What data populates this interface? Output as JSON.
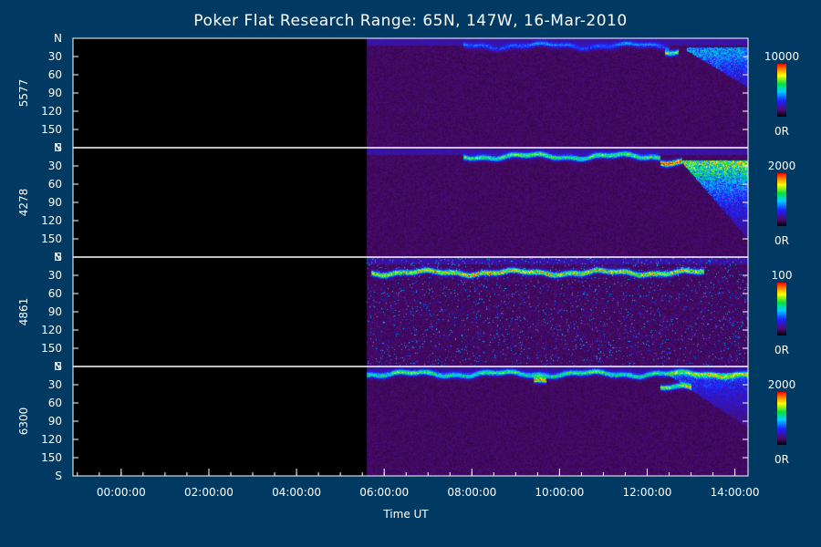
{
  "chart_data": {
    "type": "heatmap",
    "title": "Poker Flat Research Range: 65N, 147W, 16-Mar-2010",
    "xlabel": "Time UT",
    "x_ticks": [
      "00:00:00",
      "02:00:00",
      "04:00:00",
      "06:00:00",
      "08:00:00",
      "10:00:00",
      "12:00:00",
      "14:00:00"
    ],
    "x_range_hours": [
      -1.1,
      14.3
    ],
    "y_ticks": [
      "N",
      "30",
      "60",
      "90",
      "120",
      "150",
      "S"
    ],
    "y_range_deg": [
      0,
      180
    ],
    "panels": [
      {
        "label": "5577",
        "cbar_max": "10000",
        "cbar_min": "0R",
        "data_start_hour": 5.6,
        "features": [
          {
            "kind": "arc",
            "t0": 7.8,
            "t1": 12.5,
            "lat": 12,
            "amp": 0.25
          },
          {
            "kind": "arc",
            "t0": 12.4,
            "t1": 12.7,
            "lat": 20,
            "amp": 0.6
          },
          {
            "kind": "storm",
            "t0": 12.9,
            "t1": 14.3,
            "latStart": 20,
            "latEnd": 80,
            "amp": 0.45
          }
        ]
      },
      {
        "label": "4278",
        "cbar_max": "2000",
        "cbar_min": "0R",
        "data_start_hour": 5.6,
        "features": [
          {
            "kind": "arc",
            "t0": 7.8,
            "t1": 12.3,
            "lat": 14,
            "amp": 0.55
          },
          {
            "kind": "arc",
            "t0": 12.3,
            "t1": 12.8,
            "lat": 22,
            "amp": 0.9
          },
          {
            "kind": "storm",
            "t0": 12.8,
            "t1": 14.3,
            "latStart": 25,
            "latEnd": 150,
            "amp": 0.75
          }
        ]
      },
      {
        "label": "4861",
        "cbar_max": "100",
        "cbar_min": "0R",
        "data_start_hour": 5.6,
        "features": [
          {
            "kind": "arc",
            "t0": 5.7,
            "t1": 13.3,
            "lat": 25,
            "amp": 0.7
          },
          {
            "kind": "noise",
            "t0": 5.6,
            "t1": 14.3,
            "amp": 0.25
          }
        ]
      },
      {
        "label": "6300",
        "cbar_max": "2000",
        "cbar_min": "0R",
        "data_start_hour": 5.6,
        "features": [
          {
            "kind": "arc",
            "t0": 5.6,
            "t1": 14.3,
            "lat": 12,
            "amp": 0.5
          },
          {
            "kind": "arc",
            "t0": 9.4,
            "t1": 9.7,
            "lat": 20,
            "amp": 0.8
          },
          {
            "kind": "arc",
            "t0": 12.3,
            "t1": 13.0,
            "lat": 35,
            "amp": 0.6
          },
          {
            "kind": "storm",
            "t0": 12.5,
            "t1": 14.3,
            "latStart": 15,
            "latEnd": 100,
            "amp": 0.3
          }
        ]
      }
    ]
  }
}
